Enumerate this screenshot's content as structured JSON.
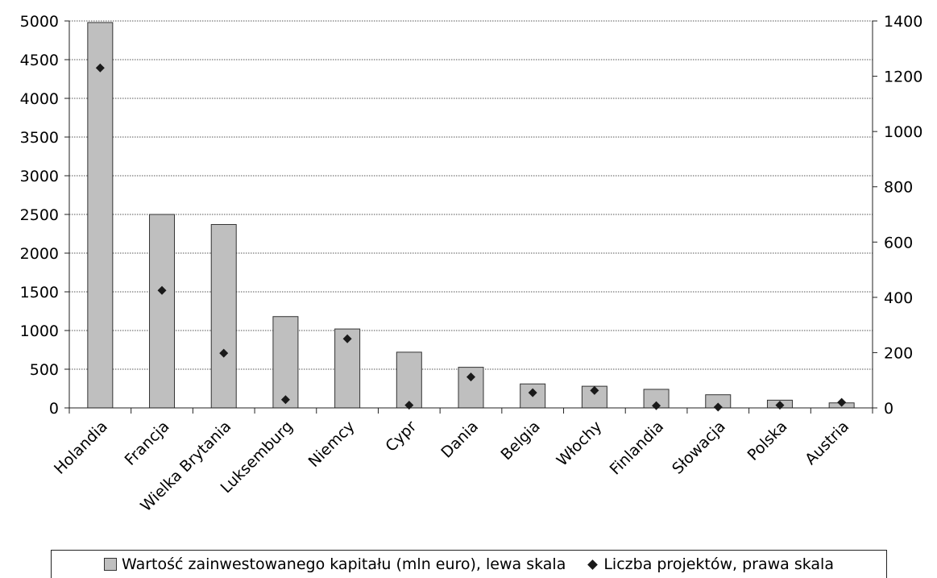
{
  "chart_data": {
    "type": "bar",
    "categories": [
      "Holandia",
      "Francja",
      "Wielka Brytania",
      "Luksemburg",
      "Niemcy",
      "Cypr",
      "Dania",
      "Belgia",
      "Włochy",
      "Finlandia",
      "Słowacja",
      "Polska",
      "Austria"
    ],
    "series": [
      {
        "name": "Wartość zainwestowanego kapitału (mln euro), lewa skala",
        "type": "bar",
        "axis": "left",
        "color": "#bfbfbf",
        "values": [
          4980,
          2500,
          2370,
          1180,
          1020,
          720,
          525,
          310,
          280,
          240,
          170,
          100,
          65
        ]
      },
      {
        "name": "Liczba projektów, prawa skala",
        "type": "scatter",
        "axis": "right",
        "color": "#1a1a1a",
        "values": [
          1230,
          425,
          198,
          30,
          250,
          10,
          112,
          55,
          63,
          8,
          3,
          10,
          20
        ]
      }
    ],
    "y_left": {
      "ylim": [
        0,
        5000
      ],
      "ticks": [
        0,
        500,
        1000,
        1500,
        2000,
        2500,
        3000,
        3500,
        4000,
        4500,
        5000
      ]
    },
    "y_right": {
      "ylim": [
        0,
        1400
      ],
      "ticks": [
        0,
        200,
        400,
        600,
        800,
        1000,
        1200,
        1400
      ]
    },
    "grid": true,
    "legend_position": "bottom",
    "title": "",
    "xlabel": "",
    "ylabel": ""
  },
  "legend": {
    "bar_label": "Wartość zainwestowanego kapitału (mln euro), lewa skala",
    "point_label": "Liczba projektów, prawa skala"
  }
}
